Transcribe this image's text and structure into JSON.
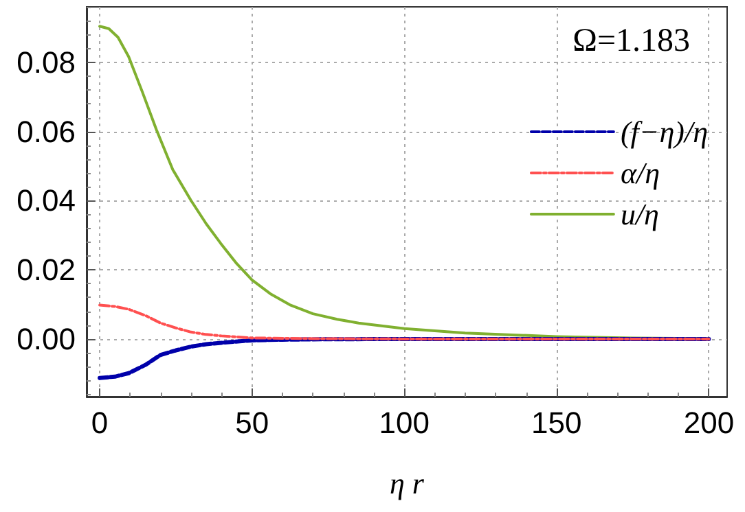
{
  "chart_data": {
    "type": "line",
    "xlabel": "η r",
    "annotations": [
      "Ω=1.183"
    ],
    "xlim": [
      -4.3,
      206
    ],
    "xticks": [
      0,
      50,
      100,
      150,
      200
    ],
    "ylim": [
      -0.0167,
      0.0961
    ],
    "yticks": [
      {
        "value": 0,
        "label": "0.00"
      },
      {
        "value": 0.02,
        "label": "0.02"
      },
      {
        "value": 0.04,
        "label": "0.04"
      },
      {
        "value": 0.06,
        "label": "0.06"
      },
      {
        "value": 0.08,
        "label": "0.08"
      }
    ],
    "grid": true,
    "legend": "top right",
    "marker": "none",
    "series": [
      {
        "name": "(f−η)/η",
        "color": "#0000aa",
        "line_style": "dashed",
        "x": [
          0,
          5,
          9.5,
          15,
          20,
          25,
          30,
          35,
          40,
          50,
          60,
          70,
          100,
          150,
          200
        ],
        "values": [
          -0.0113,
          -0.0109,
          -0.0099,
          -0.0075,
          -0.0046,
          -0.0033,
          -0.0022,
          -0.0015,
          -0.0011,
          -0.0004,
          -0.0002,
          -0.0001,
          0,
          0,
          0
        ]
      },
      {
        "name": "α/η",
        "color": "#ff5050",
        "line_style": "dashdot",
        "x": [
          0,
          5,
          9.5,
          15,
          20,
          25,
          30,
          35,
          40,
          50,
          60,
          70,
          100,
          150,
          200
        ],
        "values": [
          0.0098,
          0.0094,
          0.0086,
          0.0068,
          0.0046,
          0.0032,
          0.002,
          0.0013,
          0.0009,
          0.0003,
          0.0002,
          0.0001,
          0,
          0,
          0
        ]
      },
      {
        "name": "u/η",
        "color": "#80b030",
        "line_style": "solid",
        "x": [
          0,
          3,
          6,
          9.5,
          14,
          18.6,
          24,
          29.9,
          35,
          39.7,
          45,
          50,
          56,
          62.4,
          70,
          78,
          85,
          100,
          120,
          150,
          175,
          200
        ],
        "values": [
          0.0905,
          0.0898,
          0.0873,
          0.0817,
          0.0715,
          0.0606,
          0.049,
          0.0402,
          0.0333,
          0.0277,
          0.0218,
          0.0171,
          0.0131,
          0.0099,
          0.0073,
          0.0057,
          0.0046,
          0.003,
          0.0017,
          0.0007,
          0.0003,
          0.0001
        ]
      }
    ]
  }
}
